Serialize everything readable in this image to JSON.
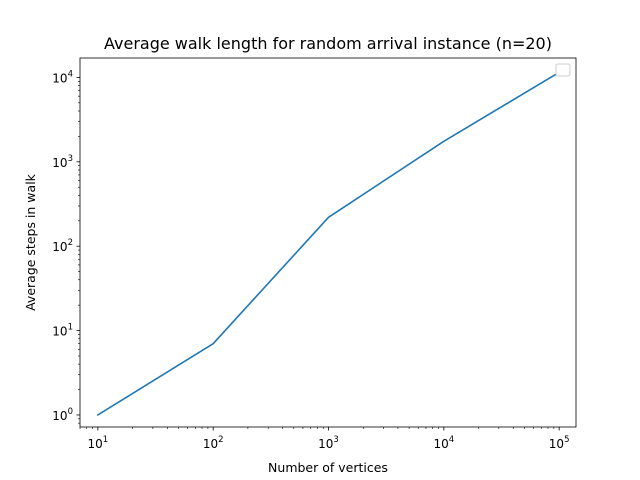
{
  "chart_data": {
    "type": "line",
    "title": "Average walk length for random arrival instance (n=20)",
    "xlabel": "Number of vertices",
    "ylabel": "Average steps in walk",
    "xscale": "log",
    "yscale": "log",
    "xlim": [
      7,
      140000
    ],
    "ylim": [
      0.72,
      17000
    ],
    "grid": false,
    "legend": "top-right",
    "x_ticks": [
      {
        "value": 10,
        "base": "10",
        "exp": "1"
      },
      {
        "value": 100,
        "base": "10",
        "exp": "2"
      },
      {
        "value": 1000,
        "base": "10",
        "exp": "3"
      },
      {
        "value": 10000,
        "base": "10",
        "exp": "4"
      },
      {
        "value": 100000,
        "base": "10",
        "exp": "5"
      }
    ],
    "y_ticks": [
      {
        "value": 1,
        "base": "10",
        "exp": "0"
      },
      {
        "value": 10,
        "base": "10",
        "exp": "1"
      },
      {
        "value": 100,
        "base": "10",
        "exp": "2"
      },
      {
        "value": 1000,
        "base": "10",
        "exp": "3"
      },
      {
        "value": 10000,
        "base": "10",
        "exp": "4"
      }
    ],
    "series": [
      {
        "color": "#1f77b4",
        "x": [
          10,
          100,
          1000,
          10000,
          100000
        ],
        "y": [
          1.0,
          7.0,
          220,
          1750,
          11500
        ]
      }
    ]
  }
}
